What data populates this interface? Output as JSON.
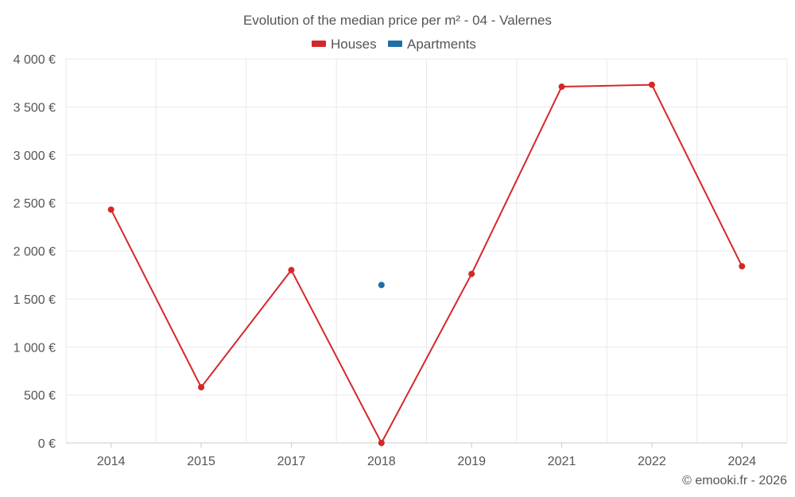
{
  "chart_data": {
    "type": "line",
    "title": "Evolution of the median price per m² - 04 - Valernes",
    "categories": [
      "2014",
      "2015",
      "2017",
      "2018",
      "2019",
      "2021",
      "2022",
      "2024"
    ],
    "series": [
      {
        "name": "Houses",
        "color": "#d62728",
        "values": [
          2430,
          580,
          1800,
          0,
          1760,
          3710,
          3730,
          1840
        ]
      },
      {
        "name": "Apartments",
        "color": "#1f6fa6",
        "values": [
          null,
          null,
          null,
          1645,
          null,
          null,
          null,
          null
        ]
      }
    ],
    "ylim": [
      0,
      4000
    ],
    "yticks": [
      0,
      500,
      1000,
      1500,
      2000,
      2500,
      3000,
      3500,
      4000
    ],
    "ytick_labels": [
      "0 €",
      "500 €",
      "1 000 €",
      "1 500 €",
      "2 000 €",
      "2 500 €",
      "3 000 €",
      "3 500 €",
      "4 000 €"
    ],
    "xlabel": "",
    "ylabel": "",
    "legend": "top-center",
    "grid": true
  },
  "credit": "© emooki.fr - 2026"
}
